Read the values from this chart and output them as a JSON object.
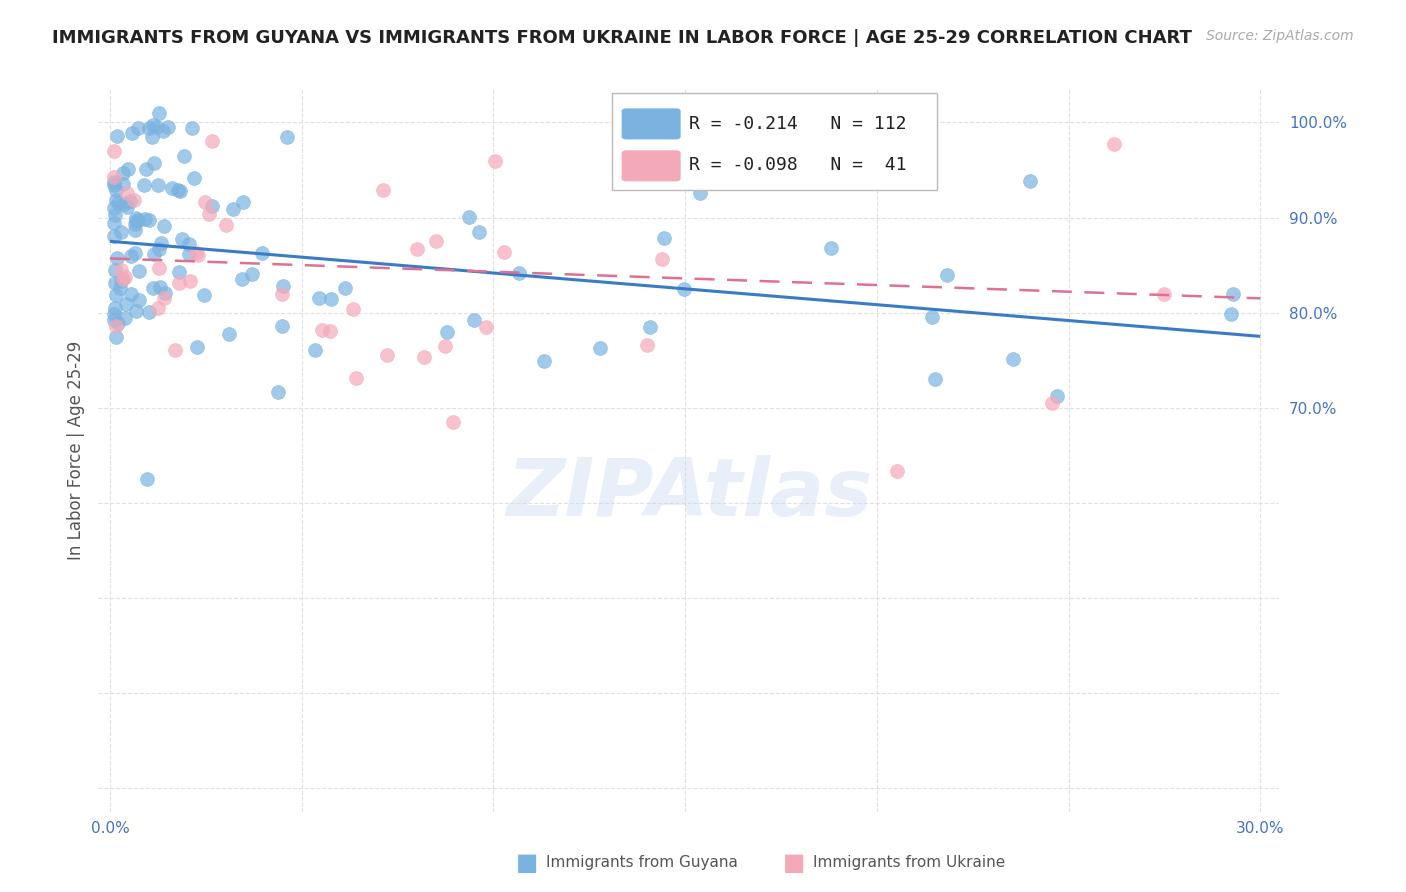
{
  "title": "IMMIGRANTS FROM GUYANA VS IMMIGRANTS FROM UKRAINE IN LABOR FORCE | AGE 25-29 CORRELATION CHART",
  "source": "Source: ZipAtlas.com",
  "ylabel": "In Labor Force | Age 25-29",
  "xlim": [
    -0.003,
    0.305
  ],
  "ylim": [
    0.275,
    1.035
  ],
  "guyana_color": "#7ab3e0",
  "ukraine_color": "#f4a9b8",
  "guyana_line_color": "#3a7bc8",
  "ukraine_line_color": "#e07090",
  "guyana_R": -0.214,
  "guyana_N": 112,
  "ukraine_R": -0.098,
  "ukraine_N": 41,
  "legend_label_guyana": "Immigrants from Guyana",
  "legend_label_ukraine": "Immigrants from Ukraine",
  "watermark": "ZIPAtlas",
  "xtick_positions": [
    0.0,
    0.05,
    0.1,
    0.15,
    0.2,
    0.25,
    0.3
  ],
  "xtick_labels": [
    "0.0%",
    "",
    "",
    "",
    "",
    "",
    "30.0%"
  ],
  "ytick_positions": [
    0.3,
    0.4,
    0.5,
    0.6,
    0.7,
    0.8,
    0.9,
    1.0
  ],
  "ytick_labels": [
    "",
    "",
    "",
    "",
    "70.0%",
    "80.0%",
    "90.0%",
    "100.0%"
  ],
  "title_fontsize": 13,
  "source_fontsize": 10,
  "tick_fontsize": 11,
  "ylabel_fontsize": 12,
  "marker_size": 100,
  "marker_alpha": 0.7,
  "tick_color": "#4472c4"
}
